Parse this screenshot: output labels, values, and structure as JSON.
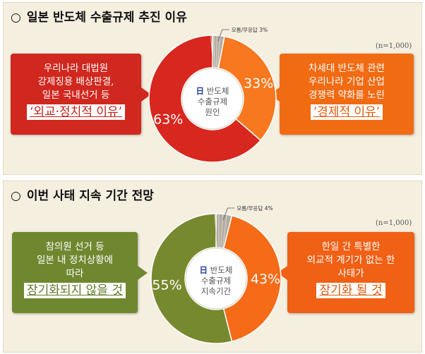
{
  "section1": {
    "heading_marker": "○",
    "heading": "일본 반도체 수출규제 추진 이유",
    "sample": "(n=1,000)",
    "left_bubble": {
      "lines": [
        "우리나라 대법원",
        "강제징용 배상판결,",
        "일본 국내선거 등"
      ],
      "highlight": "‘외교·정치적 이유’"
    },
    "right_bubble": {
      "lines": [
        "차세대 반도체 관련",
        "우리나라 기업 산업",
        "경쟁력 약화를 노린"
      ],
      "highlight": "‘경제적 이유’"
    },
    "center": {
      "prefix": "日",
      "line1": "반도체",
      "line2": "수출규제",
      "line3": "원인"
    },
    "colors": {
      "left": "#d8271e",
      "right": "#f7781e",
      "other": "#a39d94",
      "left_bubble": "#d0271e",
      "right_bubble": "#f16b13"
    }
  },
  "section2": {
    "heading_marker": "○",
    "heading": "이번 사태 지속 기간 전망",
    "sample": "(n=1,000)",
    "left_bubble": {
      "lines": [
        "참의원 선거 등",
        "일본 내 정치상황에",
        "따라"
      ],
      "highlight": "장기화되지 않을 것"
    },
    "right_bubble": {
      "lines": [
        "한일 간 특별한",
        "외교적 계기가 없는 한",
        "사태가"
      ],
      "highlight": "장기화 될 것"
    },
    "center": {
      "prefix": "日",
      "line1": "반도체",
      "line2": "수출규제",
      "line3": "지속기간"
    },
    "colors": {
      "left": "#77892e",
      "right": "#f56b18",
      "other": "#a39d94",
      "left_bubble": "#6f8830",
      "right_bubble": "#f06015"
    }
  },
  "chart_data": [
    {
      "type": "pie",
      "title": "일본 반도체 수출규제 추진 이유",
      "categories": [
        "외교·정치적 이유",
        "경제적 이유",
        "모름/무응답"
      ],
      "values": [
        63,
        33,
        3
      ],
      "labels": [
        "63%",
        "33%",
        "모름/무응답 3%"
      ]
    },
    {
      "type": "pie",
      "title": "이번 사태 지속 기간 전망",
      "categories": [
        "장기화되지 않을 것",
        "장기화 될 것",
        "모름/무응답"
      ],
      "values": [
        55,
        43,
        4
      ],
      "labels": [
        "55%",
        "43%",
        "모름/무응답 4%"
      ]
    }
  ]
}
